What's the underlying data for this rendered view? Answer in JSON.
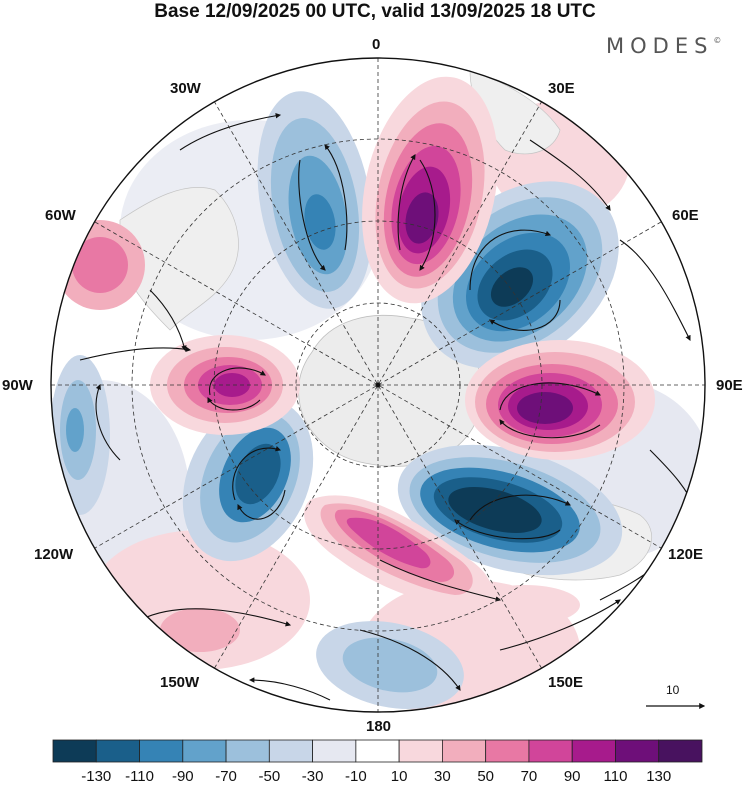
{
  "header": {
    "title": "Base 12/09/2025 00 UTC, valid 13/09/2025 18 UTC",
    "brand": "MODES",
    "brand_mark": "©"
  },
  "longitude_labels": {
    "lon_0": "0",
    "lon_30e": "30E",
    "lon_60e": "60E",
    "lon_90e": "90E",
    "lon_120e": "120E",
    "lon_150e": "150E",
    "lon_180": "180",
    "lon_150w": "150W",
    "lon_120w": "120W",
    "lon_90w": "90W",
    "lon_60w": "60W",
    "lon_30w": "30W"
  },
  "reference_vector": {
    "label": "10"
  },
  "colorbar": {
    "labels": [
      "-130",
      "-110",
      "-90",
      "-70",
      "-50",
      "-30",
      "-10",
      "10",
      "30",
      "50",
      "70",
      "90",
      "110",
      "130"
    ],
    "colors": [
      "#0d3b57",
      "#1a5f8a",
      "#3583b5",
      "#62a2cb",
      "#9cc0dc",
      "#c8d6e8",
      "#e6e8f1",
      "#ffffff",
      "#f8d8dd",
      "#f2aebd",
      "#e878a4",
      "#d1459a",
      "#a71b8c",
      "#6e0f79",
      "#48125f"
    ]
  }
}
